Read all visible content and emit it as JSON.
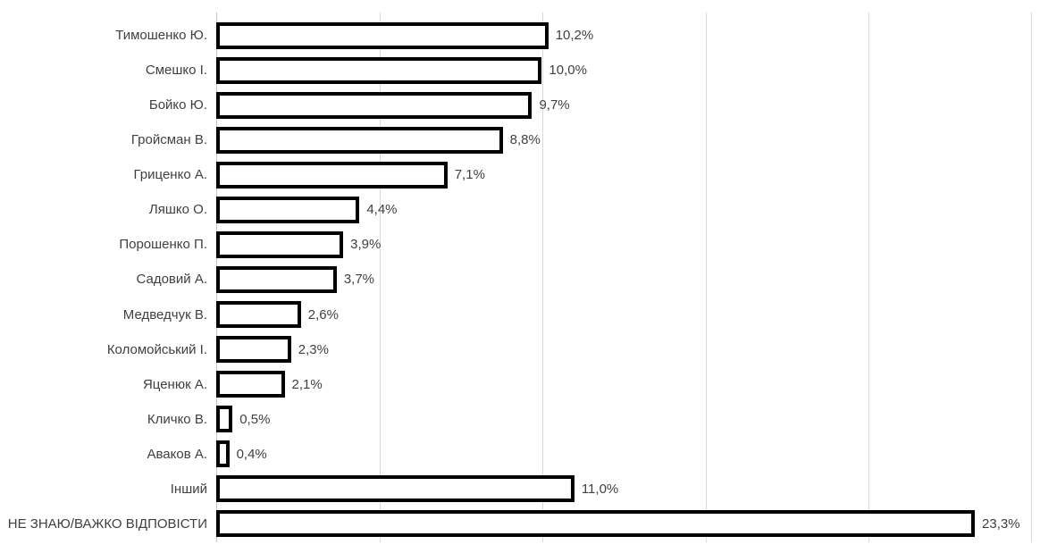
{
  "chart_data": {
    "type": "bar",
    "orientation": "horizontal",
    "title": "",
    "xlabel": "",
    "ylabel": "",
    "xlim": [
      0,
      25
    ],
    "grid": true,
    "grid_step": 5,
    "legend": false,
    "categories": [
      "Тимошенко Ю.",
      "Смешко І.",
      "Бойко Ю.",
      "Гройсман В.",
      "Гриценко А.",
      "Ляшко О.",
      "Порошенко П.",
      "Садовий А.",
      "Медведчук В.",
      "Коломойський І.",
      "Яценюк А.",
      "Кличко В.",
      "Аваков А.",
      "Інший",
      "НЕ ЗНАЮ/ВАЖКО ВІДПОВІСТИ"
    ],
    "values": [
      10.2,
      10.0,
      9.7,
      8.8,
      7.1,
      4.4,
      3.9,
      3.7,
      2.6,
      2.3,
      2.1,
      0.5,
      0.4,
      11.0,
      23.3
    ],
    "value_labels": [
      "10,2%",
      "10,0%",
      "9,7%",
      "8,8%",
      "7,1%",
      "4,4%",
      "3,9%",
      "3,7%",
      "2,6%",
      "2,3%",
      "2,1%",
      "0,5%",
      "0,4%",
      "11,0%",
      "23,3%"
    ],
    "colors": {
      "bar_fill": "#ffffff",
      "bar_border": "#000000",
      "gridline": "#d9d9d9",
      "axis_line": "#c6c6c6",
      "text": "#404040",
      "background": "#ffffff"
    }
  }
}
